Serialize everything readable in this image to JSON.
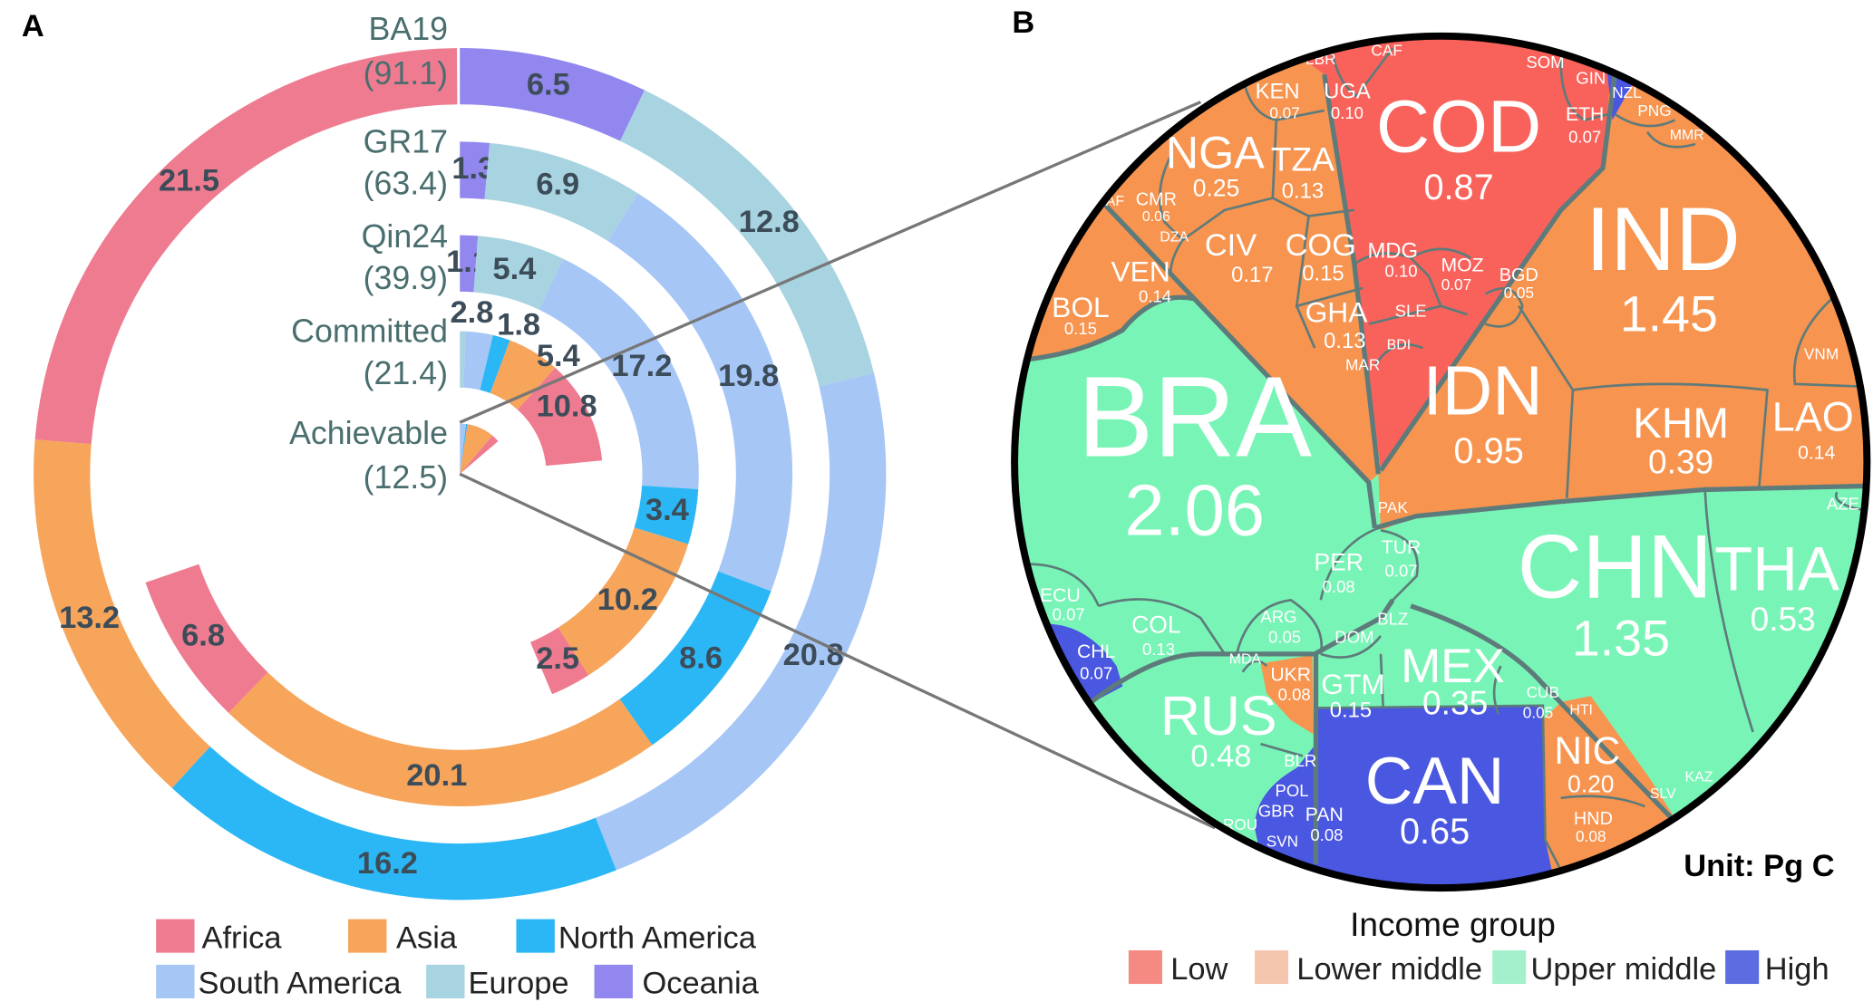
{
  "panel_a_label": "A",
  "panel_b_label": "B",
  "colors": {
    "Africa": "#ee7b8f",
    "Asia": "#f6a55a",
    "North America": "#2bb7f5",
    "South America": "#a6c6f6",
    "Europe": "#a8d3e0",
    "Oceania": "#9187ee",
    "Low": "#f9625a",
    "Lower middle": "#f7944f",
    "Upper middle": "#78f5b6",
    "High": "#4a57e0",
    "legend_Low": "#f58a83",
    "legend_Lower middle": "#f4c6ad",
    "legend_Upper middle": "#a4f0cc",
    "legend_High": "#5b6de0"
  },
  "chart_data": [
    {
      "type": "pie",
      "subtype": "concentric polar bars",
      "title": "A",
      "unit": "Pg C",
      "segment_order": [
        "Oceania",
        "Europe",
        "South America",
        "North America",
        "Asia",
        "Africa"
      ],
      "rings": [
        {
          "name": "BA19",
          "total_label": "(91.1)",
          "total": 91.1,
          "values": {
            "Oceania": 6.5,
            "Europe": 12.8,
            "South America": 20.8,
            "North America": 16.2,
            "Asia": 13.2,
            "Africa": 21.5
          },
          "labels": {
            "Oceania": "6.5",
            "Europe": "12.8",
            "South America": "20.8",
            "North America": "16.2",
            "Asia": "13.2",
            "Africa": "21.5"
          }
        },
        {
          "name": "GR17",
          "total_label": "(63.4)",
          "total": 63.4,
          "values": {
            "Oceania": 1.3,
            "Europe": 6.9,
            "South America": 19.8,
            "North America": 8.6,
            "Asia": 20.1,
            "Africa": 6.8
          },
          "labels": {
            "Oceania": "1.3",
            "Europe": "6.9",
            "South America": "19.8",
            "North America": "8.6",
            "Asia": "20.1",
            "Africa": "6.8"
          }
        },
        {
          "name": "Qin24",
          "total_label": "(39.9)",
          "total": 39.9,
          "values": {
            "Oceania": 1.1,
            "Europe": 5.4,
            "South America": 17.2,
            "North America": 3.4,
            "Asia": 10.2,
            "Africa": 2.5
          },
          "labels": {
            "Oceania": "1.1",
            "Europe": "5.4",
            "South America": "17.2",
            "North America": "3.4",
            "Asia": "10.2",
            "Africa": "2.5"
          }
        },
        {
          "name": "Committed",
          "total_label": "(21.4)",
          "total": 21.4,
          "values": {
            "Oceania": 0,
            "Europe": 0.6,
            "South America": 2.8,
            "North America": 1.8,
            "Asia": 5.4,
            "Africa": 10.8
          },
          "labels": {
            "South America": "2.8",
            "North America": "1.8",
            "Asia": "5.4",
            "Africa": "10.8"
          }
        },
        {
          "name": "Achievable",
          "total_label": "(12.5)",
          "total": 12.5,
          "values": {
            "Oceania": 0,
            "Europe": 0,
            "South America": 1.8,
            "North America": 0.4,
            "Asia": 8.0,
            "Africa": 2.3
          },
          "labels": {}
        }
      ],
      "legend": [
        "Africa",
        "Asia",
        "North America",
        "South America",
        "Europe",
        "Oceania"
      ]
    },
    {
      "type": "voronoi-treemap",
      "title": "B",
      "unit_label": "Unit: Pg C",
      "legend_title": "Income group",
      "legend": [
        "Low",
        "Lower middle",
        "Upper middle",
        "High"
      ],
      "cells": [
        {
          "code": "COD",
          "value": "0.87",
          "group": "Low"
        },
        {
          "code": "IND",
          "value": "1.45",
          "group": "Lower middle"
        },
        {
          "code": "BRA",
          "value": "2.06",
          "group": "Upper middle"
        },
        {
          "code": "IDN",
          "value": "0.95",
          "group": "Lower middle"
        },
        {
          "code": "CHN",
          "value": "1.35",
          "group": "Upper middle"
        },
        {
          "code": "THA",
          "value": "0.53",
          "group": "Upper middle"
        },
        {
          "code": "KHM",
          "value": "0.39",
          "group": "Lower middle"
        },
        {
          "code": "LAO",
          "value": "0.14",
          "group": "Lower middle"
        },
        {
          "code": "CAN",
          "value": "0.65",
          "group": "High"
        },
        {
          "code": "RUS",
          "value": "0.48",
          "group": "Upper middle"
        },
        {
          "code": "MEX",
          "value": "0.35",
          "group": "Upper middle"
        },
        {
          "code": "NIC",
          "value": "0.20",
          "group": "Lower middle"
        },
        {
          "code": "NGA",
          "value": "0.25",
          "group": "Lower middle"
        },
        {
          "code": "TZA",
          "value": "0.13",
          "group": "Lower middle"
        },
        {
          "code": "KEN",
          "value": "0.07",
          "group": "Lower middle"
        },
        {
          "code": "UGA",
          "value": "0.10",
          "group": "Low"
        },
        {
          "code": "LBR",
          "value": "",
          "group": "Low"
        },
        {
          "code": "CAF",
          "value": "",
          "group": "Low"
        },
        {
          "code": "SOM",
          "value": "",
          "group": "Low"
        },
        {
          "code": "GIN",
          "value": "",
          "group": "Low"
        },
        {
          "code": "ETH",
          "value": "0.07",
          "group": "Low"
        },
        {
          "code": "NZL",
          "value": "",
          "group": "High"
        },
        {
          "code": "PNG",
          "value": "",
          "group": "Lower middle"
        },
        {
          "code": "MMR",
          "value": "",
          "group": "Lower middle"
        },
        {
          "code": "ZAF",
          "value": "",
          "group": "Upper middle"
        },
        {
          "code": "CMR",
          "value": "0.06",
          "group": "Lower middle"
        },
        {
          "code": "DZA",
          "value": "",
          "group": "Lower middle"
        },
        {
          "code": "CIV",
          "value": "0.17",
          "group": "Lower middle"
        },
        {
          "code": "COG",
          "value": "0.15",
          "group": "Lower middle"
        },
        {
          "code": "MDG",
          "value": "0.10",
          "group": "Low"
        },
        {
          "code": "MOZ",
          "value": "0.07",
          "group": "Low"
        },
        {
          "code": "BGD",
          "value": "0.05",
          "group": "Lower middle"
        },
        {
          "code": "VEN",
          "value": "0.14",
          "group": "Lower middle"
        },
        {
          "code": "BOL",
          "value": "0.15",
          "group": "Lower middle"
        },
        {
          "code": "GHA",
          "value": "0.13",
          "group": "Lower middle"
        },
        {
          "code": "SLE",
          "value": "",
          "group": "Low"
        },
        {
          "code": "BDI",
          "value": "",
          "group": "Low"
        },
        {
          "code": "MAR",
          "value": "",
          "group": "Lower middle"
        },
        {
          "code": "VNM",
          "value": "",
          "group": "Lower middle"
        },
        {
          "code": "PAK",
          "value": "",
          "group": "Lower middle"
        },
        {
          "code": "AZE",
          "value": "",
          "group": "Upper middle"
        },
        {
          "code": "TUR",
          "value": "0.07",
          "group": "Upper middle"
        },
        {
          "code": "PER",
          "value": "0.08",
          "group": "Upper middle"
        },
        {
          "code": "ECU",
          "value": "0.07",
          "group": "Upper middle"
        },
        {
          "code": "COL",
          "value": "0.13",
          "group": "Upper middle"
        },
        {
          "code": "ARG",
          "value": "0.05",
          "group": "Upper middle"
        },
        {
          "code": "DOM",
          "value": "",
          "group": "Upper middle"
        },
        {
          "code": "BLZ",
          "value": "",
          "group": "Upper middle"
        },
        {
          "code": "CHL",
          "value": "0.07",
          "group": "High"
        },
        {
          "code": "MDA",
          "value": "",
          "group": "Upper middle"
        },
        {
          "code": "UKR",
          "value": "0.08",
          "group": "Lower middle"
        },
        {
          "code": "GTM",
          "value": "0.15",
          "group": "Upper middle"
        },
        {
          "code": "CUB",
          "value": "0.05",
          "group": "Upper middle"
        },
        {
          "code": "HTI",
          "value": "",
          "group": "Lower middle"
        },
        {
          "code": "KAZ",
          "value": "",
          "group": "Upper middle"
        },
        {
          "code": "SLV",
          "value": "",
          "group": "Lower middle"
        },
        {
          "code": "HND",
          "value": "0.08",
          "group": "Lower middle"
        },
        {
          "code": "BLR",
          "value": "",
          "group": "Upper middle"
        },
        {
          "code": "POL",
          "value": "",
          "group": "High"
        },
        {
          "code": "GBR",
          "value": "",
          "group": "High"
        },
        {
          "code": "PAN",
          "value": "0.08",
          "group": "High"
        },
        {
          "code": "ROU",
          "value": "",
          "group": "Upper middle"
        },
        {
          "code": "SVN",
          "value": "",
          "group": "High"
        }
      ]
    }
  ]
}
